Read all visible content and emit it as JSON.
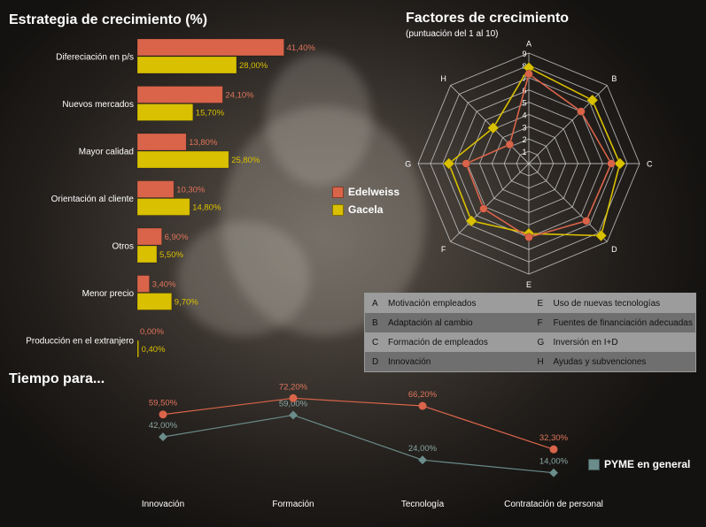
{
  "colors": {
    "edelweiss": "#d9644a",
    "gacela": "#d9c000",
    "pyme": "#6a8c8a",
    "grid": "#c9c9c9",
    "text": "#ffffff"
  },
  "titles": {
    "strategy": "Estrategia de crecimiento (%)",
    "factors": "Factores de crecimiento",
    "factors_sub": "(puntuación del 1 al 10)",
    "time": "Tiempo para..."
  },
  "legend": {
    "edelweiss": "Edelweiss",
    "gacela": "Gacela",
    "pyme": "PYME en general"
  },
  "factor_legend": [
    [
      {
        "key": "A",
        "label": "Motivación empleados"
      },
      {
        "key": "E",
        "label": "Uso de nuevas tecnologías"
      }
    ],
    [
      {
        "key": "B",
        "label": "Adaptación al cambio"
      },
      {
        "key": "F",
        "label": "Fuentes de financiación adecuadas"
      }
    ],
    [
      {
        "key": "C",
        "label": "Formación de empleados"
      },
      {
        "key": "G",
        "label": "Inversión en I+D"
      }
    ],
    [
      {
        "key": "D",
        "label": "Innovación"
      },
      {
        "key": "H",
        "label": "Ayudas y subvenciones"
      }
    ]
  ],
  "chart_data": [
    {
      "type": "bar",
      "title": "Estrategia de crecimiento (%)",
      "orientation": "horizontal",
      "categories": [
        "Difereciación en p/s",
        "Nuevos mercados",
        "Mayor calidad",
        "Orientación al cliente",
        "Otros",
        "Menor precio",
        "Producción en el extranjero"
      ],
      "series": [
        {
          "name": "Edelweiss",
          "values": [
            41.4,
            24.1,
            13.8,
            10.3,
            6.9,
            3.4,
            0.0
          ],
          "labels": [
            "41,40%",
            "24,10%",
            "13,80%",
            "10,30%",
            "6,90%",
            "3,40%",
            "0,00%"
          ]
        },
        {
          "name": "Gacela",
          "values": [
            28.0,
            15.7,
            25.8,
            14.8,
            5.5,
            9.7,
            0.4
          ],
          "labels": [
            "28,00%",
            "15,70%",
            "25,80%",
            "14,80%",
            "5,50%",
            "9,70%",
            "0,40%"
          ]
        }
      ],
      "xlim": [
        0,
        48
      ]
    },
    {
      "type": "radar",
      "title": "Factores de crecimiento",
      "subtitle": "(puntuación del 1 al 10)",
      "axes": [
        "A",
        "B",
        "C",
        "D",
        "E",
        "F",
        "G",
        "H"
      ],
      "ticks": [
        "1",
        "2",
        "3",
        "4",
        "5",
        "6",
        "7",
        "8",
        "9"
      ],
      "range": [
        0,
        9
      ],
      "series": [
        {
          "name": "Edelweiss",
          "values": [
            7.3,
            6.0,
            6.7,
            6.6,
            6.0,
            5.2,
            5.1,
            2.2
          ]
        },
        {
          "name": "Gacela",
          "values": [
            7.8,
            7.3,
            7.4,
            8.3,
            5.7,
            6.6,
            6.5,
            4.1
          ]
        }
      ]
    },
    {
      "type": "line",
      "title": "Tiempo para...",
      "categories": [
        "Innovación",
        "Formación",
        "Tecnología",
        "Contratación de personal"
      ],
      "series": [
        {
          "name": "Edelweiss",
          "values": [
            59.5,
            72.2,
            66.2,
            32.3
          ],
          "labels": [
            "59,50%",
            "72,20%",
            "66,20%",
            "32,30%"
          ]
        },
        {
          "name": "PYME en general",
          "values": [
            42.0,
            59.0,
            24.0,
            14.0
          ],
          "labels": [
            "42,00%",
            "59,00%",
            "24,00%",
            "14,00%"
          ]
        }
      ],
      "ylim": [
        0,
        100
      ]
    }
  ]
}
